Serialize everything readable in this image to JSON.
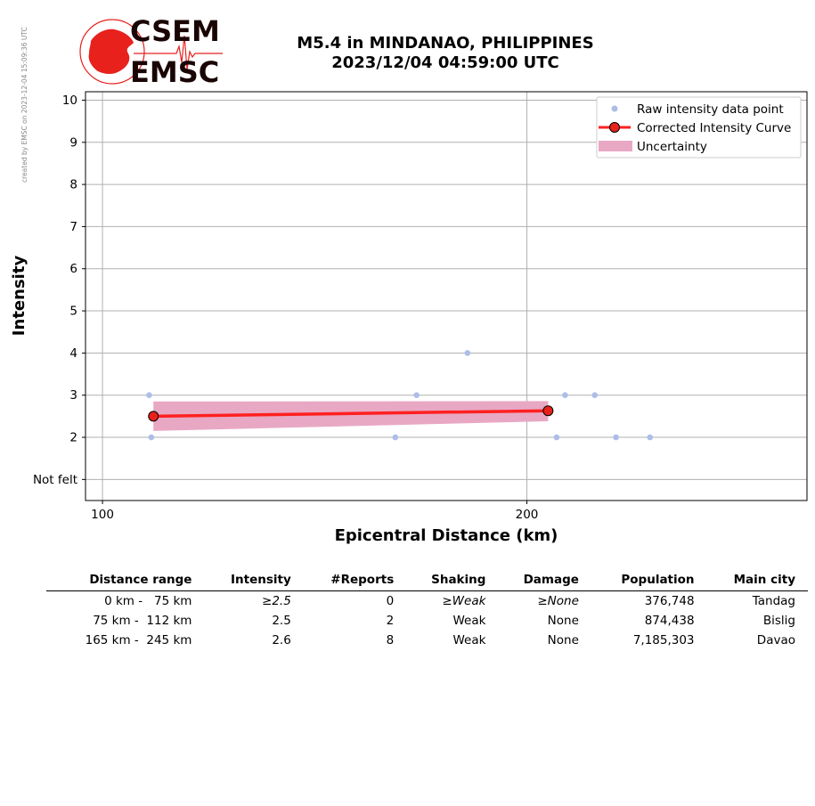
{
  "credit": "created by EMSC on 2023-12-04 15:09:36 UTC",
  "logo": {
    "top_text": "CSEM",
    "bottom_text": "EMSC",
    "color": "#e8211d"
  },
  "title": {
    "line1": "M5.4 in MINDANAO, PHILIPPINES",
    "line2": "2023/12/04 04:59:00 UTC"
  },
  "chart_data": {
    "type": "scatter",
    "xlabel": "Epicentral Distance (km)",
    "ylabel": "Intensity",
    "xlim": [
      96,
      266
    ],
    "ylim": [
      0.5,
      10.2
    ],
    "x_ticks": [
      100,
      200
    ],
    "y_ticks": [
      {
        "v": 1,
        "label": "Not felt"
      },
      {
        "v": 2,
        "label": "2"
      },
      {
        "v": 3,
        "label": "3"
      },
      {
        "v": 4,
        "label": "4"
      },
      {
        "v": 5,
        "label": "5"
      },
      {
        "v": 6,
        "label": "6"
      },
      {
        "v": 7,
        "label": "7"
      },
      {
        "v": 8,
        "label": "8"
      },
      {
        "v": 9,
        "label": "9"
      },
      {
        "v": 10,
        "label": "10"
      }
    ],
    "grid": true,
    "legend_position": "top-right",
    "series": [
      {
        "name": "Raw intensity data point",
        "type": "scatter",
        "color": "#aebde8",
        "points": [
          [
            111,
            3
          ],
          [
            111.5,
            2
          ],
          [
            169,
            2
          ],
          [
            174,
            3
          ],
          [
            186,
            4
          ],
          [
            207,
            2
          ],
          [
            209,
            3
          ],
          [
            216,
            3
          ],
          [
            221,
            2
          ],
          [
            229,
            2
          ]
        ]
      },
      {
        "name": "Corrected Intensity Curve",
        "type": "line",
        "color": "#ff2020",
        "marker_color": "#e8211d",
        "points": [
          [
            112,
            2.5
          ],
          [
            205,
            2.63
          ]
        ]
      },
      {
        "name": "Uncertainty",
        "type": "area",
        "color": "#e8a8c4",
        "upper": [
          [
            112,
            2.85
          ],
          [
            205,
            2.86
          ]
        ],
        "lower": [
          [
            112,
            2.15
          ],
          [
            205,
            2.38
          ]
        ]
      }
    ]
  },
  "table": {
    "headers": [
      "Distance range",
      "Intensity",
      "#Reports",
      "Shaking",
      "Damage",
      "Population",
      "Main city"
    ],
    "rows": [
      {
        "distance": "0 km -   75 km",
        "intensity": "≥2.5",
        "reports": "0",
        "shaking": "≥Weak",
        "damage": "≥None",
        "population": "376,748",
        "city": "Tandag"
      },
      {
        "distance": "75 km -  112 km",
        "intensity": "2.5",
        "reports": "2",
        "shaking": "Weak",
        "damage": "None",
        "population": "874,438",
        "city": "Bislig"
      },
      {
        "distance": "165 km -  245 km",
        "intensity": "2.6",
        "reports": "8",
        "shaking": "Weak",
        "damage": "None",
        "population": "7,185,303",
        "city": "Davao"
      }
    ]
  }
}
